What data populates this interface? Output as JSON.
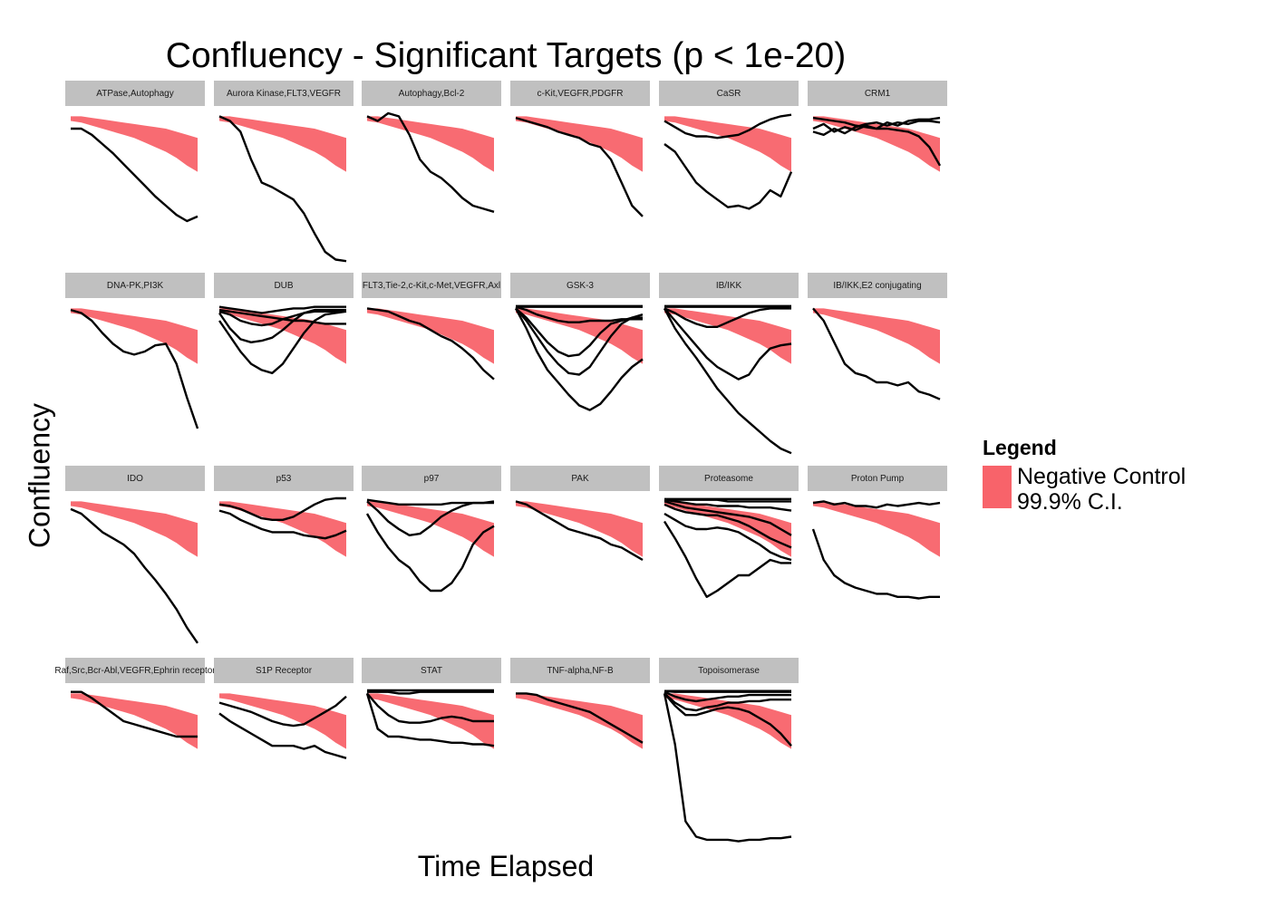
{
  "chart_data": {
    "type": "line",
    "title": "Confluency - Significant Targets (p < 1e-20)",
    "xlabel": "Time Elapsed",
    "ylabel": "Confluency",
    "ylim": [
      0,
      1
    ],
    "legend": {
      "title": "Legend",
      "entries": [
        {
          "label_line1": "Negative Control",
          "label_line2": "99.9% C.I.",
          "color": "#f8636a"
        }
      ],
      "placement": "right"
    },
    "ribbon": {
      "upper": [
        0.98,
        0.98,
        0.97,
        0.96,
        0.95,
        0.94,
        0.93,
        0.92,
        0.91,
        0.9,
        0.88,
        0.86,
        0.84
      ],
      "lower": [
        0.95,
        0.94,
        0.92,
        0.9,
        0.88,
        0.86,
        0.84,
        0.81,
        0.78,
        0.75,
        0.71,
        0.66,
        0.62
      ]
    },
    "panels": [
      {
        "label": "ATPase,Autophagy",
        "series": [
          [
            0.9,
            0.9,
            0.86,
            0.8,
            0.74,
            0.67,
            0.6,
            0.53,
            0.46,
            0.4,
            0.34,
            0.3,
            0.33
          ]
        ]
      },
      {
        "label": "Aurora Kinase,FLT3,VEGFR",
        "series": [
          [
            0.98,
            0.95,
            0.88,
            0.7,
            0.55,
            0.52,
            0.48,
            0.44,
            0.35,
            0.22,
            0.1,
            0.05,
            0.04
          ]
        ]
      },
      {
        "label": "Autophagy,Bcl-2",
        "series": [
          [
            0.98,
            0.95,
            1.0,
            0.98,
            0.86,
            0.7,
            0.62,
            0.58,
            0.52,
            0.45,
            0.4,
            0.38,
            0.36
          ]
        ]
      },
      {
        "label": "c-Kit,VEGFR,PDGFR",
        "series": [
          [
            0.97,
            0.95,
            0.93,
            0.91,
            0.88,
            0.86,
            0.84,
            0.8,
            0.78,
            0.7,
            0.55,
            0.4,
            0.33
          ]
        ]
      },
      {
        "label": "CaSR",
        "series": [
          [
            0.8,
            0.75,
            0.65,
            0.55,
            0.49,
            0.44,
            0.39,
            0.4,
            0.38,
            0.42,
            0.5,
            0.46,
            0.62
          ],
          [
            0.95,
            0.91,
            0.87,
            0.85,
            0.85,
            0.84,
            0.85,
            0.86,
            0.89,
            0.93,
            0.96,
            0.98,
            0.99
          ]
        ]
      },
      {
        "label": "CRM1",
        "series": [
          [
            0.97,
            0.96,
            0.95,
            0.94,
            0.92,
            0.91,
            0.9,
            0.9,
            0.89,
            0.88,
            0.85,
            0.78,
            0.66
          ],
          [
            0.9,
            0.93,
            0.88,
            0.91,
            0.89,
            0.92,
            0.9,
            0.94,
            0.92,
            0.95,
            0.96,
            0.96,
            0.97
          ],
          [
            0.88,
            0.86,
            0.9,
            0.87,
            0.91,
            0.93,
            0.94,
            0.92,
            0.94,
            0.93,
            0.95,
            0.95,
            0.94
          ]
        ]
      },
      {
        "label": "DNA-PK,PI3K",
        "series": [
          [
            0.97,
            0.95,
            0.9,
            0.82,
            0.75,
            0.7,
            0.68,
            0.7,
            0.74,
            0.75,
            0.62,
            0.4,
            0.2
          ]
        ]
      },
      {
        "label": "DUB",
        "series": [
          [
            0.9,
            0.8,
            0.7,
            0.62,
            0.58,
            0.56,
            0.62,
            0.72,
            0.82,
            0.9,
            0.94,
            0.95,
            0.96
          ],
          [
            0.95,
            0.85,
            0.78,
            0.76,
            0.77,
            0.79,
            0.84,
            0.9,
            0.95,
            0.97,
            0.97,
            0.97,
            0.97
          ],
          [
            0.96,
            0.94,
            0.9,
            0.88,
            0.87,
            0.88,
            0.91,
            0.93,
            0.95,
            0.96,
            0.96,
            0.96,
            0.96
          ],
          [
            0.97,
            0.96,
            0.95,
            0.94,
            0.93,
            0.92,
            0.91,
            0.9,
            0.9,
            0.89,
            0.88,
            0.88,
            0.88
          ],
          [
            0.99,
            0.98,
            0.97,
            0.96,
            0.95,
            0.96,
            0.97,
            0.98,
            0.98,
            0.99,
            0.99,
            0.99,
            0.99
          ]
        ]
      },
      {
        "label": "FLT3,Tie-2,c-Kit,c-Met,VEGFR,Axl",
        "series": [
          [
            0.98,
            0.97,
            0.96,
            0.93,
            0.9,
            0.88,
            0.84,
            0.8,
            0.77,
            0.72,
            0.66,
            0.58,
            0.52
          ]
        ]
      },
      {
        "label": "GSK-3",
        "series": [
          [
            0.98,
            0.85,
            0.7,
            0.58,
            0.5,
            0.42,
            0.35,
            0.32,
            0.36,
            0.44,
            0.53,
            0.6,
            0.65
          ],
          [
            0.98,
            0.9,
            0.8,
            0.7,
            0.62,
            0.56,
            0.55,
            0.6,
            0.7,
            0.8,
            0.88,
            0.92,
            0.94
          ],
          [
            0.98,
            0.92,
            0.84,
            0.76,
            0.7,
            0.67,
            0.68,
            0.74,
            0.82,
            0.88,
            0.9,
            0.92,
            0.92
          ],
          [
            0.99,
            0.97,
            0.94,
            0.92,
            0.9,
            0.89,
            0.89,
            0.9,
            0.9,
            0.9,
            0.91,
            0.91,
            0.91
          ],
          [
            0.99,
            0.99,
            0.99,
            0.99,
            0.99,
            0.99,
            0.99,
            0.99,
            0.99,
            0.99,
            0.99,
            0.99,
            0.99
          ],
          [
            0.995,
            0.995,
            0.995,
            0.995,
            0.995,
            0.995,
            0.995,
            0.995,
            0.995,
            0.995,
            0.995,
            0.995,
            0.995
          ]
        ]
      },
      {
        "label": "IB/IKK",
        "series": [
          [
            0.98,
            0.85,
            0.75,
            0.66,
            0.56,
            0.46,
            0.38,
            0.3,
            0.24,
            0.18,
            0.12,
            0.07,
            0.04
          ],
          [
            0.98,
            0.9,
            0.82,
            0.74,
            0.66,
            0.6,
            0.56,
            0.52,
            0.55,
            0.65,
            0.72,
            0.74,
            0.75
          ],
          [
            0.98,
            0.95,
            0.91,
            0.88,
            0.86,
            0.86,
            0.89,
            0.92,
            0.95,
            0.97,
            0.98,
            0.98,
            0.98
          ],
          [
            0.99,
            0.99,
            0.99,
            0.99,
            0.99,
            0.99,
            0.99,
            0.99,
            0.99,
            0.99,
            0.99,
            0.99,
            0.99
          ],
          [
            0.995,
            0.995,
            0.995,
            0.995,
            0.995,
            0.995,
            0.995,
            0.995,
            0.995,
            0.995,
            0.995,
            0.995,
            0.995
          ]
        ]
      },
      {
        "label": "IB/IKK,E2 conjugating",
        "series": [
          [
            0.98,
            0.9,
            0.76,
            0.62,
            0.56,
            0.54,
            0.5,
            0.5,
            0.48,
            0.5,
            0.44,
            0.42,
            0.39
          ]
        ]
      },
      {
        "label": "IDO",
        "series": [
          [
            0.93,
            0.9,
            0.84,
            0.78,
            0.74,
            0.7,
            0.64,
            0.55,
            0.47,
            0.38,
            0.28,
            0.16,
            0.06
          ]
        ]
      },
      {
        "label": "p53",
        "series": [
          [
            0.92,
            0.9,
            0.86,
            0.83,
            0.8,
            0.78,
            0.78,
            0.78,
            0.76,
            0.75,
            0.74,
            0.76,
            0.79
          ],
          [
            0.96,
            0.95,
            0.93,
            0.9,
            0.87,
            0.86,
            0.86,
            0.88,
            0.92,
            0.96,
            0.99,
            1.0,
            1.0
          ]
        ]
      },
      {
        "label": "p97",
        "series": [
          [
            0.9,
            0.78,
            0.68,
            0.6,
            0.55,
            0.46,
            0.4,
            0.4,
            0.45,
            0.55,
            0.7,
            0.78,
            0.82
          ],
          [
            0.98,
            0.92,
            0.85,
            0.8,
            0.76,
            0.77,
            0.82,
            0.88,
            0.92,
            0.95,
            0.97,
            0.97,
            0.98
          ],
          [
            0.99,
            0.98,
            0.97,
            0.96,
            0.96,
            0.96,
            0.96,
            0.96,
            0.97,
            0.97,
            0.97,
            0.97,
            0.97
          ]
        ]
      },
      {
        "label": "PAK",
        "series": [
          [
            0.98,
            0.96,
            0.92,
            0.88,
            0.84,
            0.8,
            0.78,
            0.76,
            0.74,
            0.7,
            0.68,
            0.64,
            0.6
          ]
        ]
      },
      {
        "label": "Proteasome",
        "series": [
          [
            0.85,
            0.74,
            0.62,
            0.48,
            0.36,
            0.4,
            0.45,
            0.5,
            0.5,
            0.55,
            0.6,
            0.58,
            0.58
          ],
          [
            0.9,
            0.86,
            0.82,
            0.8,
            0.8,
            0.81,
            0.8,
            0.78,
            0.74,
            0.7,
            0.65,
            0.62,
            0.6
          ],
          [
            0.96,
            0.93,
            0.91,
            0.9,
            0.89,
            0.89,
            0.87,
            0.85,
            0.82,
            0.78,
            0.74,
            0.71,
            0.68
          ],
          [
            0.98,
            0.96,
            0.94,
            0.93,
            0.92,
            0.91,
            0.9,
            0.89,
            0.88,
            0.86,
            0.84,
            0.8,
            0.76
          ],
          [
            0.99,
            0.98,
            0.97,
            0.96,
            0.96,
            0.95,
            0.95,
            0.95,
            0.94,
            0.94,
            0.94,
            0.93,
            0.92
          ],
          [
            0.99,
            0.99,
            0.99,
            0.99,
            0.99,
            0.99,
            0.98,
            0.98,
            0.98,
            0.98,
            0.98,
            0.98,
            0.98
          ],
          [
            0.995,
            0.995,
            0.995,
            0.995,
            0.995,
            0.995,
            0.995,
            0.995,
            0.995,
            0.995,
            0.995,
            0.995,
            0.995
          ]
        ]
      },
      {
        "label": "Proton Pump",
        "series": [
          [
            0.8,
            0.6,
            0.5,
            0.45,
            0.42,
            0.4,
            0.38,
            0.38,
            0.36,
            0.36,
            0.35,
            0.36,
            0.36
          ],
          [
            0.97,
            0.98,
            0.96,
            0.97,
            0.95,
            0.95,
            0.94,
            0.96,
            0.95,
            0.96,
            0.97,
            0.96,
            0.97
          ]
        ]
      },
      {
        "label": "Raf,Src,Bcr-Abl,VEGFR,Ephrin receptor",
        "series": [
          [
            0.99,
            0.99,
            0.95,
            0.9,
            0.85,
            0.8,
            0.78,
            0.76,
            0.74,
            0.72,
            0.7,
            0.7,
            0.7
          ]
        ]
      },
      {
        "label": "S1P Receptor",
        "series": [
          [
            0.85,
            0.8,
            0.76,
            0.72,
            0.68,
            0.64,
            0.64,
            0.64,
            0.62,
            0.64,
            0.6,
            0.58,
            0.56
          ],
          [
            0.92,
            0.9,
            0.88,
            0.86,
            0.83,
            0.8,
            0.78,
            0.77,
            0.78,
            0.82,
            0.86,
            0.9,
            0.96
          ]
        ]
      },
      {
        "label": "STAT",
        "series": [
          [
            0.98,
            0.75,
            0.7,
            0.7,
            0.69,
            0.68,
            0.68,
            0.67,
            0.66,
            0.66,
            0.65,
            0.65,
            0.64
          ],
          [
            0.98,
            0.9,
            0.84,
            0.8,
            0.79,
            0.79,
            0.8,
            0.82,
            0.83,
            0.82,
            0.8,
            0.8,
            0.8
          ],
          [
            0.99,
            0.99,
            0.99,
            0.98,
            0.98,
            0.99,
            0.99,
            0.99,
            0.99,
            0.99,
            0.99,
            0.99,
            0.99
          ],
          [
            1.0,
            1.0,
            1.0,
            1.0,
            1.0,
            1.0,
            1.0,
            1.0,
            1.0,
            1.0,
            1.0,
            1.0,
            1.0
          ]
        ]
      },
      {
        "label": "TNF-alpha,NF-B",
        "series": [
          [
            0.98,
            0.98,
            0.97,
            0.94,
            0.92,
            0.9,
            0.88,
            0.86,
            0.82,
            0.78,
            0.74,
            0.7,
            0.66
          ]
        ]
      },
      {
        "label": "Topoisomerase",
        "series": [
          [
            0.98,
            0.65,
            0.15,
            0.05,
            0.03,
            0.03,
            0.03,
            0.02,
            0.03,
            0.03,
            0.04,
            0.04,
            0.05
          ],
          [
            0.98,
            0.9,
            0.84,
            0.84,
            0.86,
            0.88,
            0.89,
            0.88,
            0.86,
            0.82,
            0.78,
            0.72,
            0.64
          ],
          [
            0.98,
            0.92,
            0.88,
            0.87,
            0.89,
            0.9,
            0.92,
            0.92,
            0.93,
            0.93,
            0.94,
            0.94,
            0.94
          ],
          [
            0.99,
            0.96,
            0.94,
            0.93,
            0.94,
            0.95,
            0.96,
            0.96,
            0.97,
            0.97,
            0.97,
            0.97,
            0.97
          ],
          [
            0.995,
            0.99,
            0.99,
            0.99,
            0.99,
            0.99,
            0.99,
            0.99,
            0.99,
            0.99,
            0.99,
            0.99,
            0.99
          ],
          [
            0.996,
            0.996,
            0.996,
            0.996,
            0.996,
            0.996,
            0.996,
            0.996,
            0.996,
            0.996,
            0.996,
            0.996,
            0.996
          ]
        ]
      }
    ]
  }
}
